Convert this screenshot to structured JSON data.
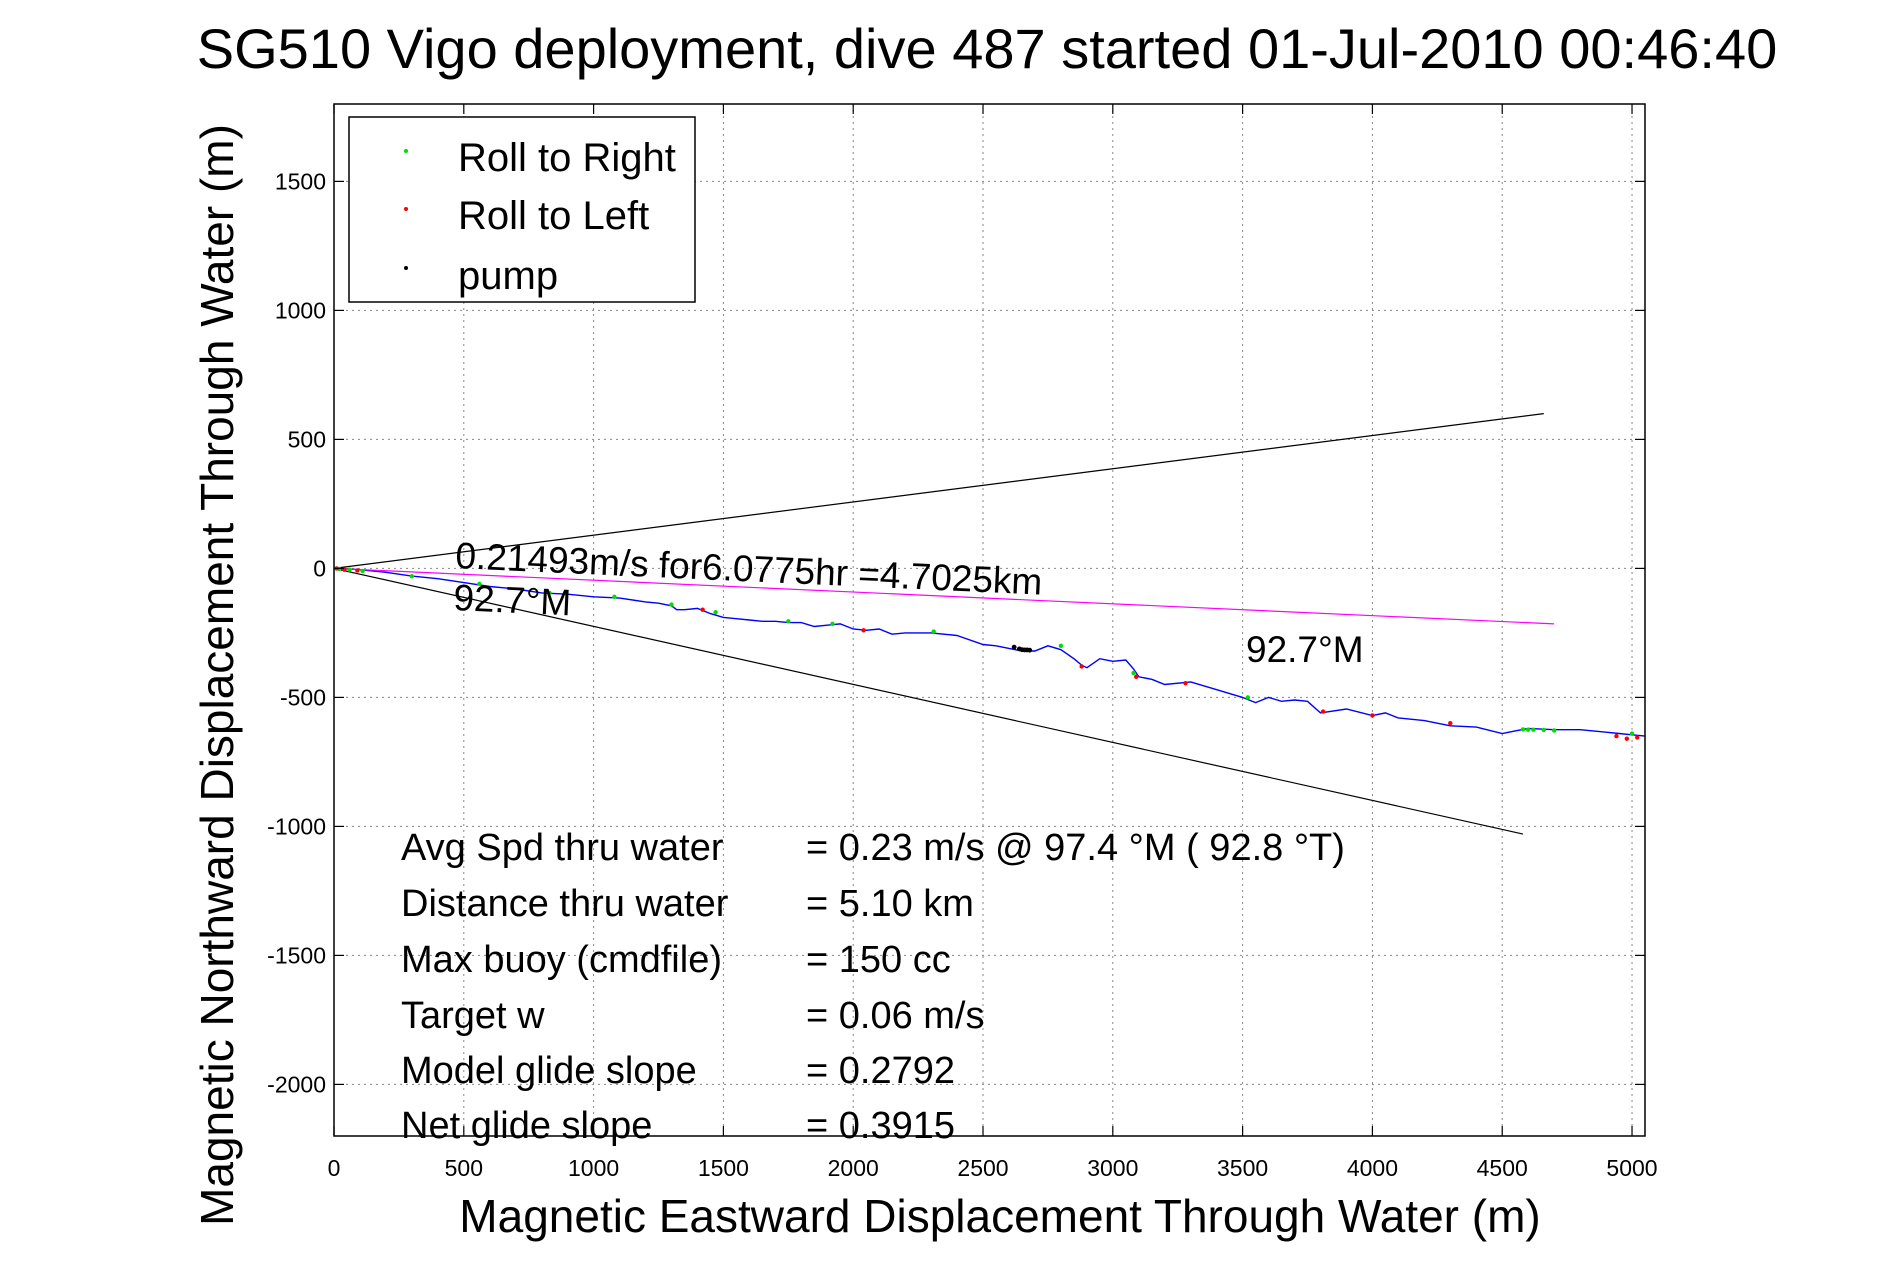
{
  "chart_data": {
    "type": "line",
    "title": "SG510 Vigo deployment, dive 487 started 01-Jul-2010 00:46:40",
    "xlabel": "Magnetic Eastward Displacement Through Water (m)",
    "ylabel": "Magnetic Northward Displacement Through Water (m)",
    "xlim": [
      0,
      5050
    ],
    "ylim": [
      -2200,
      1800
    ],
    "xticks": [
      0,
      500,
      1000,
      1500,
      2000,
      2500,
      3000,
      3500,
      4000,
      4500,
      5000
    ],
    "xtick_labels": [
      "0",
      "500",
      "1000",
      "1500",
      "2000",
      "2500",
      "3000",
      "3500",
      "4000",
      "4500",
      "5000"
    ],
    "yticks": [
      1500,
      1000,
      500,
      0,
      -500,
      -1000,
      -1500,
      -2000
    ],
    "ytick_labels": [
      "1500",
      "1000",
      "500",
      "0",
      "-500",
      "-1000",
      "-1500",
      "-2000"
    ],
    "grid": true,
    "legend_position": "top-left",
    "legend": [
      {
        "label": "Roll to Right",
        "color": "#00dd00"
      },
      {
        "label": "Roll to Left",
        "color": "#ff0000"
      },
      {
        "label": "pump",
        "color": "#000000"
      }
    ],
    "colors": {
      "track": "#0000ff",
      "heading_line": "#ff00ff",
      "cone_lines": "#000000",
      "roll_right": "#00dd00",
      "roll_left": "#ff0000",
      "pump": "#000000"
    },
    "series": [
      {
        "role": "track",
        "x": [
          0,
          50,
          100,
          200,
          300,
          400,
          500,
          600,
          700,
          800,
          900,
          1000,
          1100,
          1200,
          1250,
          1300,
          1320,
          1350,
          1400,
          1450,
          1500,
          1550,
          1600,
          1650,
          1700,
          1750,
          1800,
          1850,
          1900,
          1950,
          2000,
          2050,
          2100,
          2150,
          2200,
          2300,
          2400,
          2500,
          2550,
          2600,
          2650,
          2700,
          2750,
          2800,
          2850,
          2880,
          2900,
          2950,
          3000,
          3050,
          3080,
          3100,
          3150,
          3200,
          3300,
          3400,
          3500,
          3550,
          3600,
          3650,
          3700,
          3750,
          3800,
          3900,
          4000,
          4050,
          4100,
          4200,
          4300,
          4400,
          4500,
          4550,
          4600,
          4700,
          4800,
          4900,
          4950,
          5000,
          5050
        ],
        "y": [
          0,
          -2,
          -5,
          -15,
          -30,
          -40,
          -55,
          -70,
          -80,
          -95,
          -100,
          -110,
          -115,
          -130,
          -135,
          -145,
          -160,
          -160,
          -155,
          -175,
          -190,
          -195,
          -200,
          -205,
          -205,
          -210,
          -210,
          -225,
          -220,
          -215,
          -235,
          -240,
          -235,
          -255,
          -250,
          -250,
          -260,
          -295,
          -300,
          -310,
          -320,
          -320,
          -300,
          -315,
          -350,
          -375,
          -385,
          -350,
          -360,
          -355,
          -390,
          -420,
          -430,
          -450,
          -440,
          -470,
          -500,
          -520,
          -500,
          -515,
          -510,
          -515,
          -560,
          -545,
          -570,
          -560,
          -580,
          -590,
          -610,
          -615,
          -640,
          -630,
          -620,
          -625,
          -625,
          -635,
          -640,
          -645,
          -650
        ]
      },
      {
        "role": "heading_line",
        "x": [
          0,
          4700
        ],
        "y": [
          0,
          -215
        ]
      },
      {
        "role": "cone_upper",
        "x": [
          0,
          4660
        ],
        "y": [
          0,
          600
        ]
      },
      {
        "role": "cone_lower",
        "x": [
          0,
          4580
        ],
        "y": [
          0,
          -1030
        ]
      }
    ],
    "roll_right_points": {
      "x": [
        20,
        60,
        110,
        300,
        560,
        830,
        1080,
        1300,
        1470,
        1750,
        1920,
        2310,
        2800,
        3080,
        3520,
        4580,
        4600,
        4620,
        4660,
        4700,
        5000
      ],
      "y": [
        -2,
        -5,
        -10,
        -30,
        -60,
        -95,
        -110,
        -140,
        -170,
        -205,
        -215,
        -245,
        -300,
        -405,
        -500,
        -624,
        -625,
        -625,
        -626,
        -628,
        -640
      ]
    },
    "roll_left_points": {
      "x": [
        10,
        40,
        90,
        1420,
        2040,
        2880,
        3090,
        3280,
        3810,
        4000,
        4300,
        4940,
        4980,
        5020
      ],
      "y": [
        0,
        -5,
        -8,
        -160,
        -240,
        -380,
        -420,
        -445,
        -555,
        -570,
        -600,
        -650,
        -660,
        -655
      ]
    },
    "pump_points": {
      "x": [
        2620,
        2640,
        2650,
        2660,
        2670,
        2680
      ],
      "y": [
        -305,
        -312,
        -315,
        -316,
        -316,
        -317
      ]
    },
    "annotations": {
      "speed_line": "0.21493m/s for6.0775hr =4.7025km",
      "heading_upper": "92.7°M",
      "heading_right": "92.7°M"
    },
    "stats": [
      {
        "label": "Avg Spd thru water",
        "value": "=  0.23 m/s @  97.4 °M ( 92.8 °T)"
      },
      {
        "label": "Distance thru water",
        "value": "=  5.10 km"
      },
      {
        "label": "Max buoy (cmdfile)",
        "value": "= 150 cc"
      },
      {
        "label": "Target w",
        "value": "= 0.06 m/s"
      },
      {
        "label": "Model glide slope",
        "value": "= 0.2792"
      },
      {
        "label": "Net glide slope",
        "value": "= 0.3915"
      }
    ]
  }
}
